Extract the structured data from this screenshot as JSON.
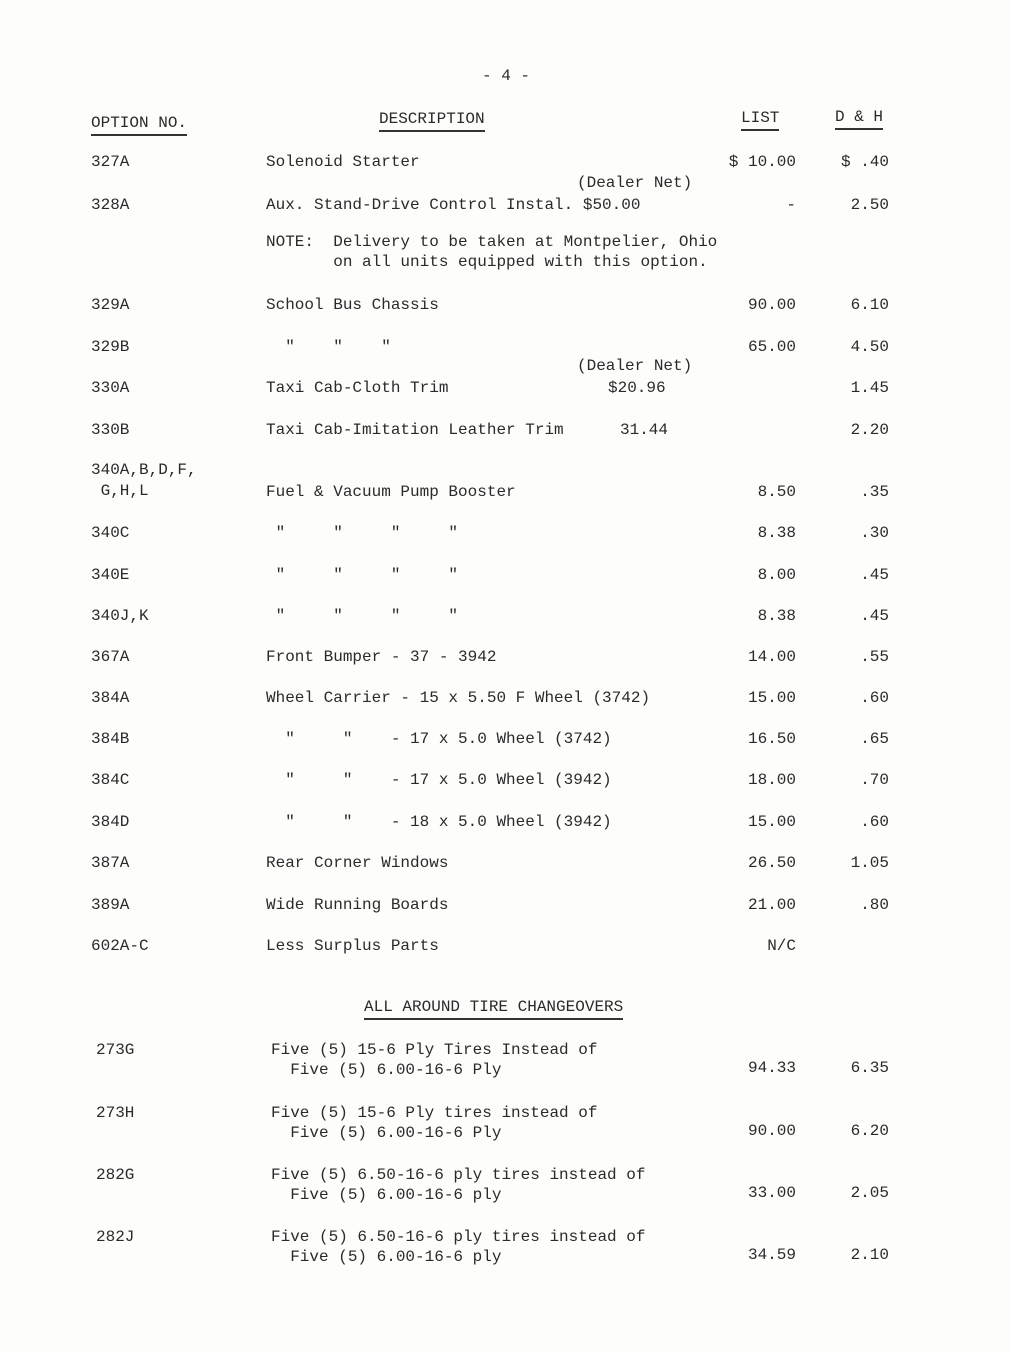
{
  "page_number": "- 4 -",
  "headers": {
    "option": "OPTION NO.",
    "description": "DESCRIPTION",
    "list": "LIST",
    "dh": "D & H"
  },
  "rows": [
    {
      "option": "327A",
      "description": "Solenoid Starter",
      "list": "$ 10.00",
      "dh": "$ .40"
    },
    {
      "option": "328A",
      "description": "Aux. Stand-Drive Control Instal. $50.00",
      "annotation": "(Dealer Net)",
      "list": "-",
      "dh": "2.50"
    },
    {
      "option": "",
      "description": "NOTE:  Delivery to be taken at Montpelier, Ohio",
      "description_line2": "       on all units equipped with this option."
    },
    {
      "option": "329A",
      "description": "School Bus Chassis",
      "list": "90.00",
      "dh": "6.10"
    },
    {
      "option": "329B",
      "description": "  \"    \"    \"",
      "list": "65.00",
      "dh": "4.50"
    },
    {
      "option": "330A",
      "description": "Taxi Cab-Cloth Trim",
      "annotation": "(Dealer Net)",
      "net": "$20.96",
      "dh": "1.45"
    },
    {
      "option": "330B",
      "description": "Taxi Cab-Imitation Leather Trim",
      "net": "31.44",
      "dh": "2.20"
    },
    {
      "option": "340A,B,D,F,",
      "option_line2": " G,H,L",
      "description": "Fuel & Vacuum Pump Booster",
      "list": "8.50",
      "dh": ".35"
    },
    {
      "option": "340C",
      "description": " \"     \"     \"     \"",
      "list": "8.38",
      "dh": ".30"
    },
    {
      "option": "340E",
      "description": " \"     \"     \"     \"",
      "list": "8.00",
      "dh": ".45"
    },
    {
      "option": "340J,K",
      "description": " \"     \"     \"     \"",
      "list": "8.38",
      "dh": ".45"
    },
    {
      "option": "367A",
      "description": "Front Bumper - 37 - 3942",
      "list": "14.00",
      "dh": ".55"
    },
    {
      "option": "384A",
      "description": "Wheel Carrier - 15 x 5.50 F Wheel (3742)",
      "list": "15.00",
      "dh": ".60"
    },
    {
      "option": "384B",
      "description": "  \"     \"    - 17 x 5.0 Wheel (3742)",
      "list": "16.50",
      "dh": ".65"
    },
    {
      "option": "384C",
      "description": "  \"     \"    - 17 x 5.0 Wheel (3942)",
      "list": "18.00",
      "dh": ".70"
    },
    {
      "option": "384D",
      "description": "  \"     \"    - 18 x 5.0 Wheel (3942)",
      "list": "15.00",
      "dh": ".60"
    },
    {
      "option": "387A",
      "description": "Rear Corner Windows",
      "list": "26.50",
      "dh": "1.05"
    },
    {
      "option": "389A",
      "description": "Wide Running Boards",
      "list": "21.00",
      "dh": ".80"
    },
    {
      "option": "602A-C",
      "description": "Less Surplus Parts",
      "list": "N/C",
      "dh": ""
    }
  ],
  "section_heading": "ALL AROUND TIRE CHANGEOVERS",
  "tire_rows": [
    {
      "option": "273G",
      "description": "Five (5) 15-6 Ply Tires Instead of",
      "description_line2": "  Five (5) 6.00-16-6 Ply",
      "list": "94.33",
      "dh": "6.35"
    },
    {
      "option": "273H",
      "description": "Five (5) 15-6 Ply tires instead of",
      "description_line2": "  Five (5) 6.00-16-6 Ply",
      "list": "90.00",
      "dh": "6.20"
    },
    {
      "option": "282G",
      "description": "Five (5) 6.50-16-6 ply tires instead of",
      "description_line2": "  Five (5) 6.00-16-6 ply",
      "list": "33.00",
      "dh": "2.05"
    },
    {
      "option": "282J",
      "description": "Five (5) 6.50-16-6 ply tires instead of",
      "description_line2": "  Five (5) 6.00-16-6 ply",
      "list": "34.59",
      "dh": "2.10"
    }
  ]
}
